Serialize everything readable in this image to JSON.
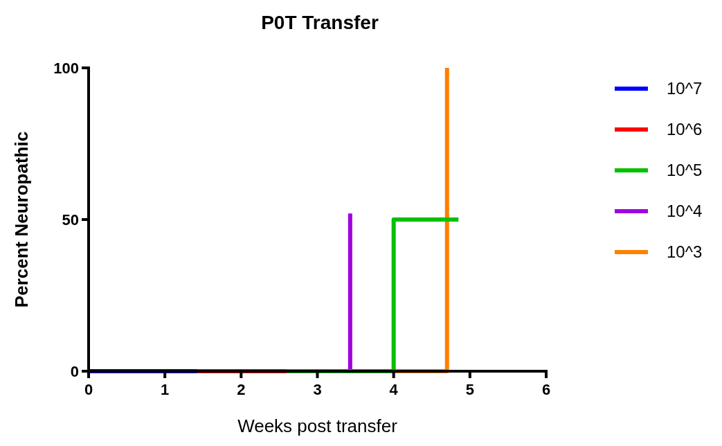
{
  "chart_data": {
    "type": "step",
    "title": "P0T Transfer",
    "xlabel": "Weeks post transfer",
    "ylabel": "Percent Neuropathic",
    "xlim": [
      0,
      6
    ],
    "xticks": [
      0,
      1,
      2,
      3,
      4,
      5,
      6
    ],
    "ylim": [
      0,
      100
    ],
    "yticks": [
      0,
      50,
      100
    ],
    "grid": false,
    "legend": "right",
    "series": [
      {
        "name": "10^7",
        "color": "#0000ff",
        "x": [
          0,
          1.43
        ],
        "values": [
          0,
          0
        ]
      },
      {
        "name": "10^6",
        "color": "#ff0000",
        "x": [
          1.43,
          1.85,
          2.6
        ],
        "values": [
          0,
          0,
          0
        ]
      },
      {
        "name": "10^5",
        "color": "#00c000",
        "x": [
          2.6,
          4,
          4.85
        ],
        "values": [
          0,
          50,
          50
        ]
      },
      {
        "name": "10^4",
        "color": "#a000e0",
        "x": [
          3.43,
          3.43
        ],
        "values": [
          0,
          52
        ]
      },
      {
        "name": "10^3",
        "color": "#ff8000",
        "x": [
          4,
          4.7
        ],
        "values": [
          0,
          100
        ]
      }
    ]
  }
}
